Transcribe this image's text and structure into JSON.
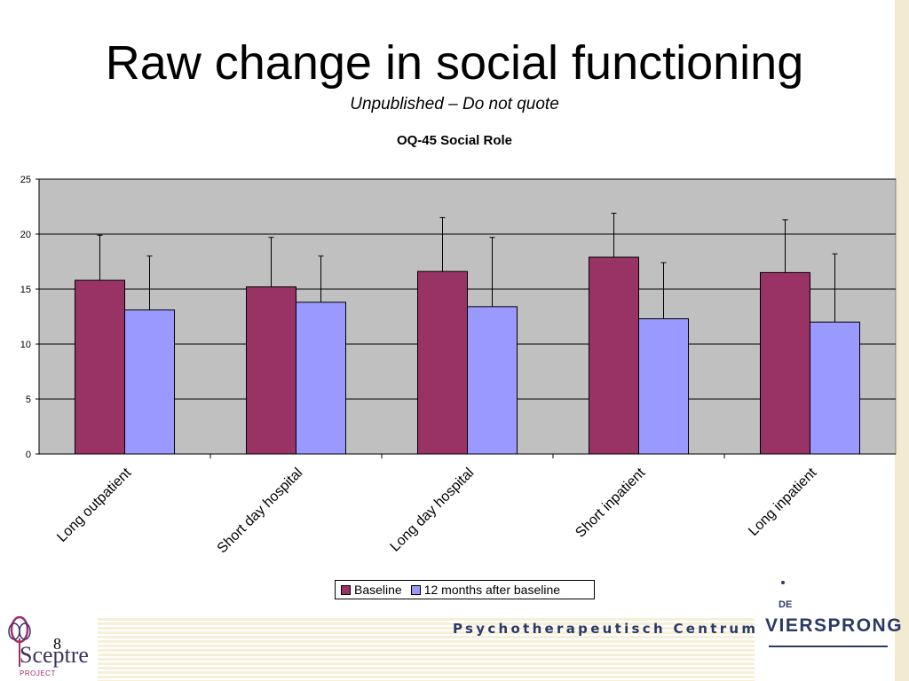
{
  "slide": {
    "title": "Raw change in social functioning",
    "subtitle": "Unpublished – Do not quote",
    "page_number": "8"
  },
  "footer": {
    "centre_text": "Psychotherapeutisch Centrum",
    "logo_left_word": "Sceptre",
    "logo_left_sub": "PROJECT",
    "logo_right_prefix": "DE",
    "logo_right_name": "VIERSPRONG"
  },
  "colors": {
    "baseline": "#993366",
    "followup": "#9999ff",
    "plot_bg": "#c0c0c0"
  },
  "chart_data": {
    "type": "bar",
    "title": "OQ-45 Social Role",
    "categories": [
      "Long outpatient",
      "Short day hospital",
      "Long day hospital",
      "Short inpatient",
      "Long inpatient"
    ],
    "series": [
      {
        "name": "Baseline",
        "values": [
          15.8,
          15.2,
          16.6,
          17.9,
          16.5
        ],
        "error": [
          4.1,
          4.5,
          4.9,
          4.0,
          4.8
        ]
      },
      {
        "name": "12 months after baseline",
        "values": [
          13.1,
          13.8,
          13.4,
          12.3,
          12.0
        ],
        "error": [
          4.9,
          4.2,
          6.3,
          5.1,
          6.2
        ]
      }
    ],
    "yticks": [
      "0",
      "5",
      "10",
      "15",
      "20",
      "25"
    ],
    "ylim": [
      0,
      25
    ],
    "grid": true,
    "legend_position": "bottom"
  }
}
